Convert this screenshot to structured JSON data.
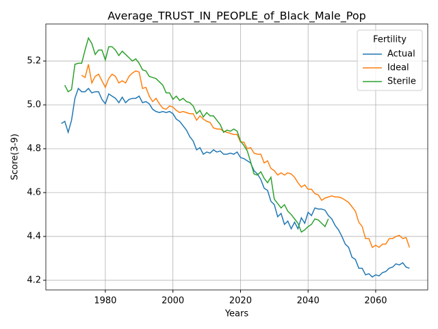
{
  "chart_data": {
    "type": "line",
    "title": "Average_TRUST_IN_PEOPLE_of_Black_Male_Pop",
    "x_label": "Years",
    "y_label": "Score(3-9)",
    "x": [
      1967,
      1968,
      1969,
      1970,
      1971,
      1972,
      1973,
      1974,
      1975,
      1976,
      1977,
      1978,
      1979,
      1980,
      1981,
      1982,
      1983,
      1984,
      1985,
      1986,
      1987,
      1988,
      1989,
      1990,
      1991,
      1992,
      1993,
      1994,
      1995,
      1996,
      1997,
      1998,
      1999,
      2000,
      2001,
      2002,
      2003,
      2004,
      2005,
      2006,
      2007,
      2008,
      2009,
      2010,
      2011,
      2012,
      2013,
      2014,
      2015,
      2016,
      2017,
      2018,
      2019,
      2020,
      2021,
      2022,
      2023,
      2024,
      2025,
      2026,
      2027,
      2028,
      2029,
      2030,
      2031,
      2032,
      2033,
      2034,
      2035,
      2036,
      2037,
      2038,
      2039,
      2040,
      2041,
      2042,
      2043,
      2044,
      2045,
      2046,
      2047,
      2048,
      2049,
      2050,
      2051,
      2052,
      2053,
      2054,
      2055,
      2056,
      2057,
      2058,
      2059,
      2060,
      2061,
      2062,
      2063,
      2064,
      2065,
      2066,
      2067,
      2068,
      2069,
      2070
    ],
    "series": [
      {
        "name": "Actual",
        "color": "#1f77b4",
        "values": [
          4.915,
          4.925,
          4.875,
          4.93,
          5.03,
          5.075,
          5.06,
          5.06,
          5.075,
          5.055,
          5.06,
          5.06,
          5.025,
          5.005,
          5.05,
          5.04,
          5.03,
          5.01,
          5.035,
          5.01,
          5.025,
          5.03,
          5.03,
          5.04,
          5.01,
          5.015,
          5.005,
          4.98,
          4.97,
          4.965,
          4.97,
          4.965,
          4.97,
          4.96,
          4.935,
          4.925,
          4.905,
          4.885,
          4.855,
          4.835,
          4.795,
          4.805,
          4.775,
          4.785,
          4.78,
          4.795,
          4.785,
          4.79,
          4.775,
          4.775,
          4.78,
          4.775,
          4.785,
          4.76,
          4.755,
          4.745,
          4.735,
          4.7,
          4.685,
          4.66,
          4.62,
          4.61,
          4.56,
          4.545,
          4.49,
          4.505,
          4.455,
          4.47,
          4.435,
          4.465,
          4.435,
          4.485,
          4.46,
          4.51,
          4.495,
          4.53,
          4.525,
          4.525,
          4.52,
          4.495,
          4.48,
          4.45,
          4.43,
          4.4,
          4.365,
          4.35,
          4.305,
          4.295,
          4.255,
          4.255,
          4.225,
          4.23,
          4.215,
          4.225,
          4.22,
          4.235,
          4.24,
          4.255,
          4.26,
          4.275,
          4.27,
          4.28,
          4.26,
          4.255
        ]
      },
      {
        "name": "Ideal",
        "color": "#ff7f0e",
        "values": [
          null,
          null,
          null,
          null,
          null,
          null,
          5.135,
          5.125,
          5.185,
          5.1,
          5.13,
          5.14,
          5.11,
          5.08,
          5.12,
          5.14,
          5.13,
          5.1,
          5.11,
          5.1,
          5.13,
          5.145,
          5.155,
          5.15,
          5.075,
          5.08,
          5.04,
          5.015,
          5.03,
          5.005,
          4.985,
          4.98,
          4.995,
          4.99,
          4.975,
          4.965,
          4.97,
          4.965,
          4.96,
          4.96,
          4.93,
          4.95,
          4.935,
          4.925,
          4.92,
          4.895,
          4.89,
          4.89,
          4.88,
          4.875,
          4.87,
          4.865,
          4.865,
          4.83,
          4.83,
          4.8,
          4.805,
          4.78,
          4.775,
          4.775,
          4.735,
          4.745,
          4.71,
          4.7,
          4.68,
          4.69,
          4.68,
          4.69,
          4.685,
          4.67,
          4.645,
          4.625,
          4.635,
          4.615,
          4.615,
          4.595,
          4.59,
          4.565,
          4.575,
          4.58,
          4.585,
          4.58,
          4.58,
          4.575,
          4.565,
          4.555,
          4.535,
          4.515,
          4.465,
          4.445,
          4.39,
          4.39,
          4.35,
          4.36,
          4.35,
          4.365,
          4.365,
          4.39,
          4.39,
          4.4,
          4.405,
          4.39,
          4.395,
          4.35
        ]
      },
      {
        "name": "Sterile",
        "color": "#2ca02c",
        "values": [
          null,
          5.09,
          5.06,
          5.07,
          5.185,
          5.19,
          5.19,
          5.25,
          5.305,
          5.28,
          5.23,
          5.25,
          5.25,
          5.205,
          5.265,
          5.265,
          5.25,
          5.225,
          5.245,
          5.23,
          5.215,
          5.2,
          5.21,
          5.19,
          5.16,
          5.155,
          5.13,
          5.125,
          5.12,
          5.105,
          5.09,
          5.055,
          5.055,
          5.025,
          5.04,
          5.02,
          5.03,
          5.015,
          5.01,
          4.995,
          4.96,
          4.975,
          4.945,
          4.965,
          4.95,
          4.95,
          4.93,
          4.91,
          4.875,
          4.885,
          4.88,
          4.89,
          4.88,
          4.835,
          4.815,
          4.79,
          4.74,
          4.685,
          4.68,
          4.695,
          4.665,
          4.645,
          4.67,
          4.57,
          4.55,
          4.53,
          4.545,
          4.515,
          4.5,
          4.48,
          4.46,
          4.42,
          4.43,
          4.445,
          4.455,
          4.48,
          4.475,
          4.46,
          4.445,
          4.48,
          null,
          null,
          null,
          null,
          null,
          null,
          null,
          null,
          null,
          null,
          null,
          null,
          null,
          null,
          null,
          null,
          null,
          null,
          null,
          null,
          null,
          null,
          null,
          null
        ]
      }
    ],
    "xlim": [
      1962.4,
      2075.4
    ],
    "xticks": [
      1980,
      2000,
      2020,
      2040,
      2060
    ],
    "ylim": [
      4.156,
      5.369
    ],
    "yticks": [
      4.2,
      4.4,
      4.6,
      4.8,
      {
        "value": 5,
        "label": "5.0"
      },
      5.2
    ],
    "grid": true,
    "legend_title": "Fertility",
    "legend_position": "upper right"
  }
}
